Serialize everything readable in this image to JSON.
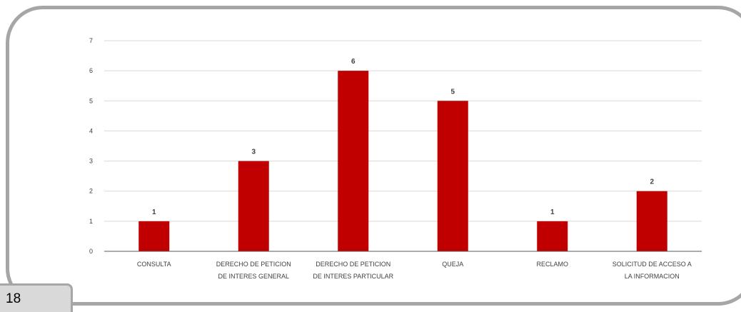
{
  "page": {
    "number": "18"
  },
  "chart_data": {
    "type": "bar",
    "title": "",
    "xlabel": "",
    "ylabel": "",
    "categories": [
      [
        "CONSULTA"
      ],
      [
        "DERECHO DE PETICION",
        "DE INTERES GENERAL"
      ],
      [
        "DERECHO DE PETICION",
        "DE INTERES PARTICULAR"
      ],
      [
        "QUEJA"
      ],
      [
        "RECLAMO"
      ],
      [
        "SOLICITUD DE ACCESO A",
        "LA INFORMACION"
      ]
    ],
    "values": [
      1,
      3,
      6,
      5,
      1,
      2
    ],
    "ylim": [
      0,
      7
    ],
    "yticks": [
      0,
      1,
      2,
      3,
      4,
      5,
      6,
      7
    ],
    "grid": true,
    "legend": "none",
    "bar_color": "#c00000",
    "grid_color": "#d9d9d9",
    "axis_color": "#595959"
  }
}
